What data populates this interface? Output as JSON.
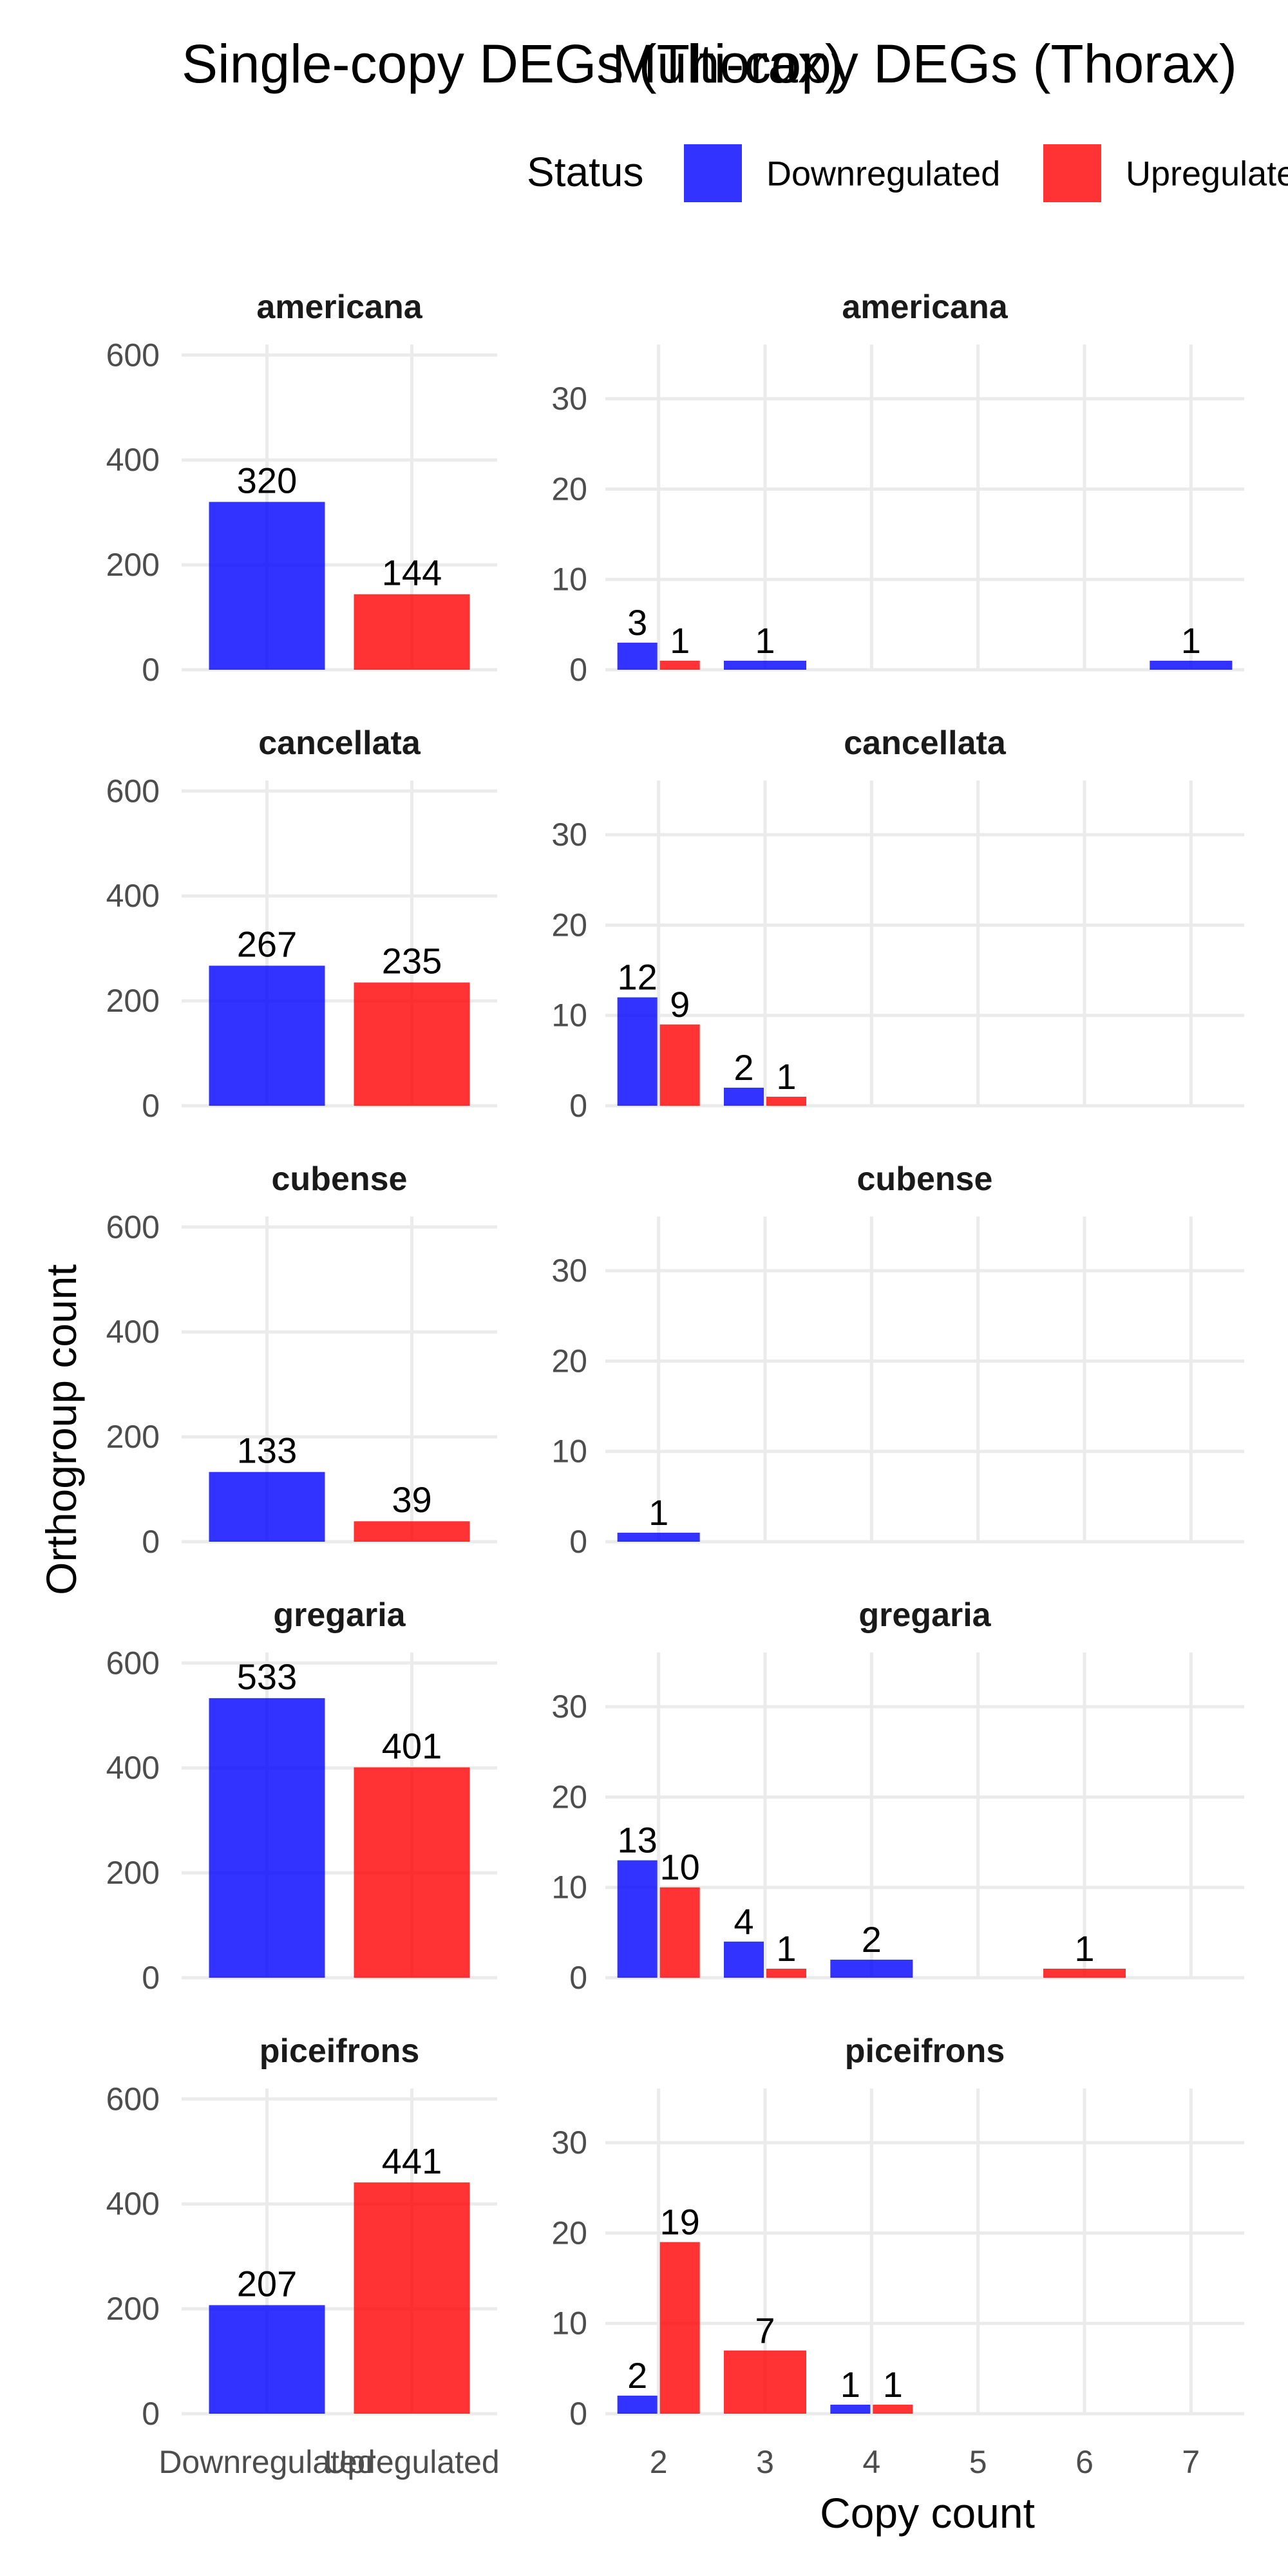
{
  "chart_data": [
    {
      "type": "bar",
      "title": "Single-copy DEGs (Thorax)",
      "xlabel": "",
      "ylabel": "Orthogroup count",
      "ylim": [
        0,
        620
      ],
      "yticks": [
        0,
        200,
        400,
        600
      ],
      "categories": [
        "Downregulated",
        "Upregulated"
      ],
      "panels": [
        {
          "species": "americana",
          "values": [
            320,
            144
          ]
        },
        {
          "species": "cancellata",
          "values": [
            267,
            235
          ]
        },
        {
          "species": "cubense",
          "values": [
            133,
            39
          ]
        },
        {
          "species": "gregaria",
          "values": [
            533,
            401
          ]
        },
        {
          "species": "piceifrons",
          "values": [
            207,
            441
          ]
        }
      ]
    },
    {
      "type": "bar",
      "title": "Multi-copy DEGs (Thorax)",
      "xlabel": "Copy count",
      "ylabel": "",
      "xlim": [
        1.5,
        7.5
      ],
      "xticks": [
        2,
        3,
        4,
        5,
        6,
        7
      ],
      "ylim": [
        0,
        36
      ],
      "yticks": [
        0,
        10,
        20,
        30
      ],
      "panels": [
        {
          "species": "americana",
          "bars": [
            {
              "copy": 2,
              "status": "Downregulated",
              "value": 3
            },
            {
              "copy": 2,
              "status": "Upregulated",
              "value": 1
            },
            {
              "copy": 3,
              "status": "Downregulated",
              "value": 1
            },
            {
              "copy": 7,
              "status": "Downregulated",
              "value": 1
            }
          ]
        },
        {
          "species": "cancellata",
          "bars": [
            {
              "copy": 2,
              "status": "Downregulated",
              "value": 12
            },
            {
              "copy": 2,
              "status": "Upregulated",
              "value": 9
            },
            {
              "copy": 3,
              "status": "Downregulated",
              "value": 2
            },
            {
              "copy": 3,
              "status": "Upregulated",
              "value": 1
            }
          ]
        },
        {
          "species": "cubense",
          "bars": [
            {
              "copy": 2,
              "status": "Downregulated",
              "value": 1
            }
          ]
        },
        {
          "species": "gregaria",
          "bars": [
            {
              "copy": 2,
              "status": "Downregulated",
              "value": 13
            },
            {
              "copy": 2,
              "status": "Upregulated",
              "value": 10
            },
            {
              "copy": 3,
              "status": "Downregulated",
              "value": 4
            },
            {
              "copy": 3,
              "status": "Upregulated",
              "value": 1
            },
            {
              "copy": 4,
              "status": "Downregulated",
              "value": 2
            },
            {
              "copy": 6,
              "status": "Upregulated",
              "value": 1
            }
          ]
        },
        {
          "species": "piceifrons",
          "bars": [
            {
              "copy": 2,
              "status": "Downregulated",
              "value": 2
            },
            {
              "copy": 2,
              "status": "Upregulated",
              "value": 19
            },
            {
              "copy": 3,
              "status": "Upregulated",
              "value": 7
            },
            {
              "copy": 4,
              "status": "Downregulated",
              "value": 1
            },
            {
              "copy": 4,
              "status": "Upregulated",
              "value": 1
            }
          ]
        }
      ]
    }
  ],
  "legend": {
    "title": "Status",
    "entries": [
      {
        "label": "Downregulated",
        "color": "#0000ff"
      },
      {
        "label": "Upregulated",
        "color": "#ff0000"
      }
    ]
  }
}
